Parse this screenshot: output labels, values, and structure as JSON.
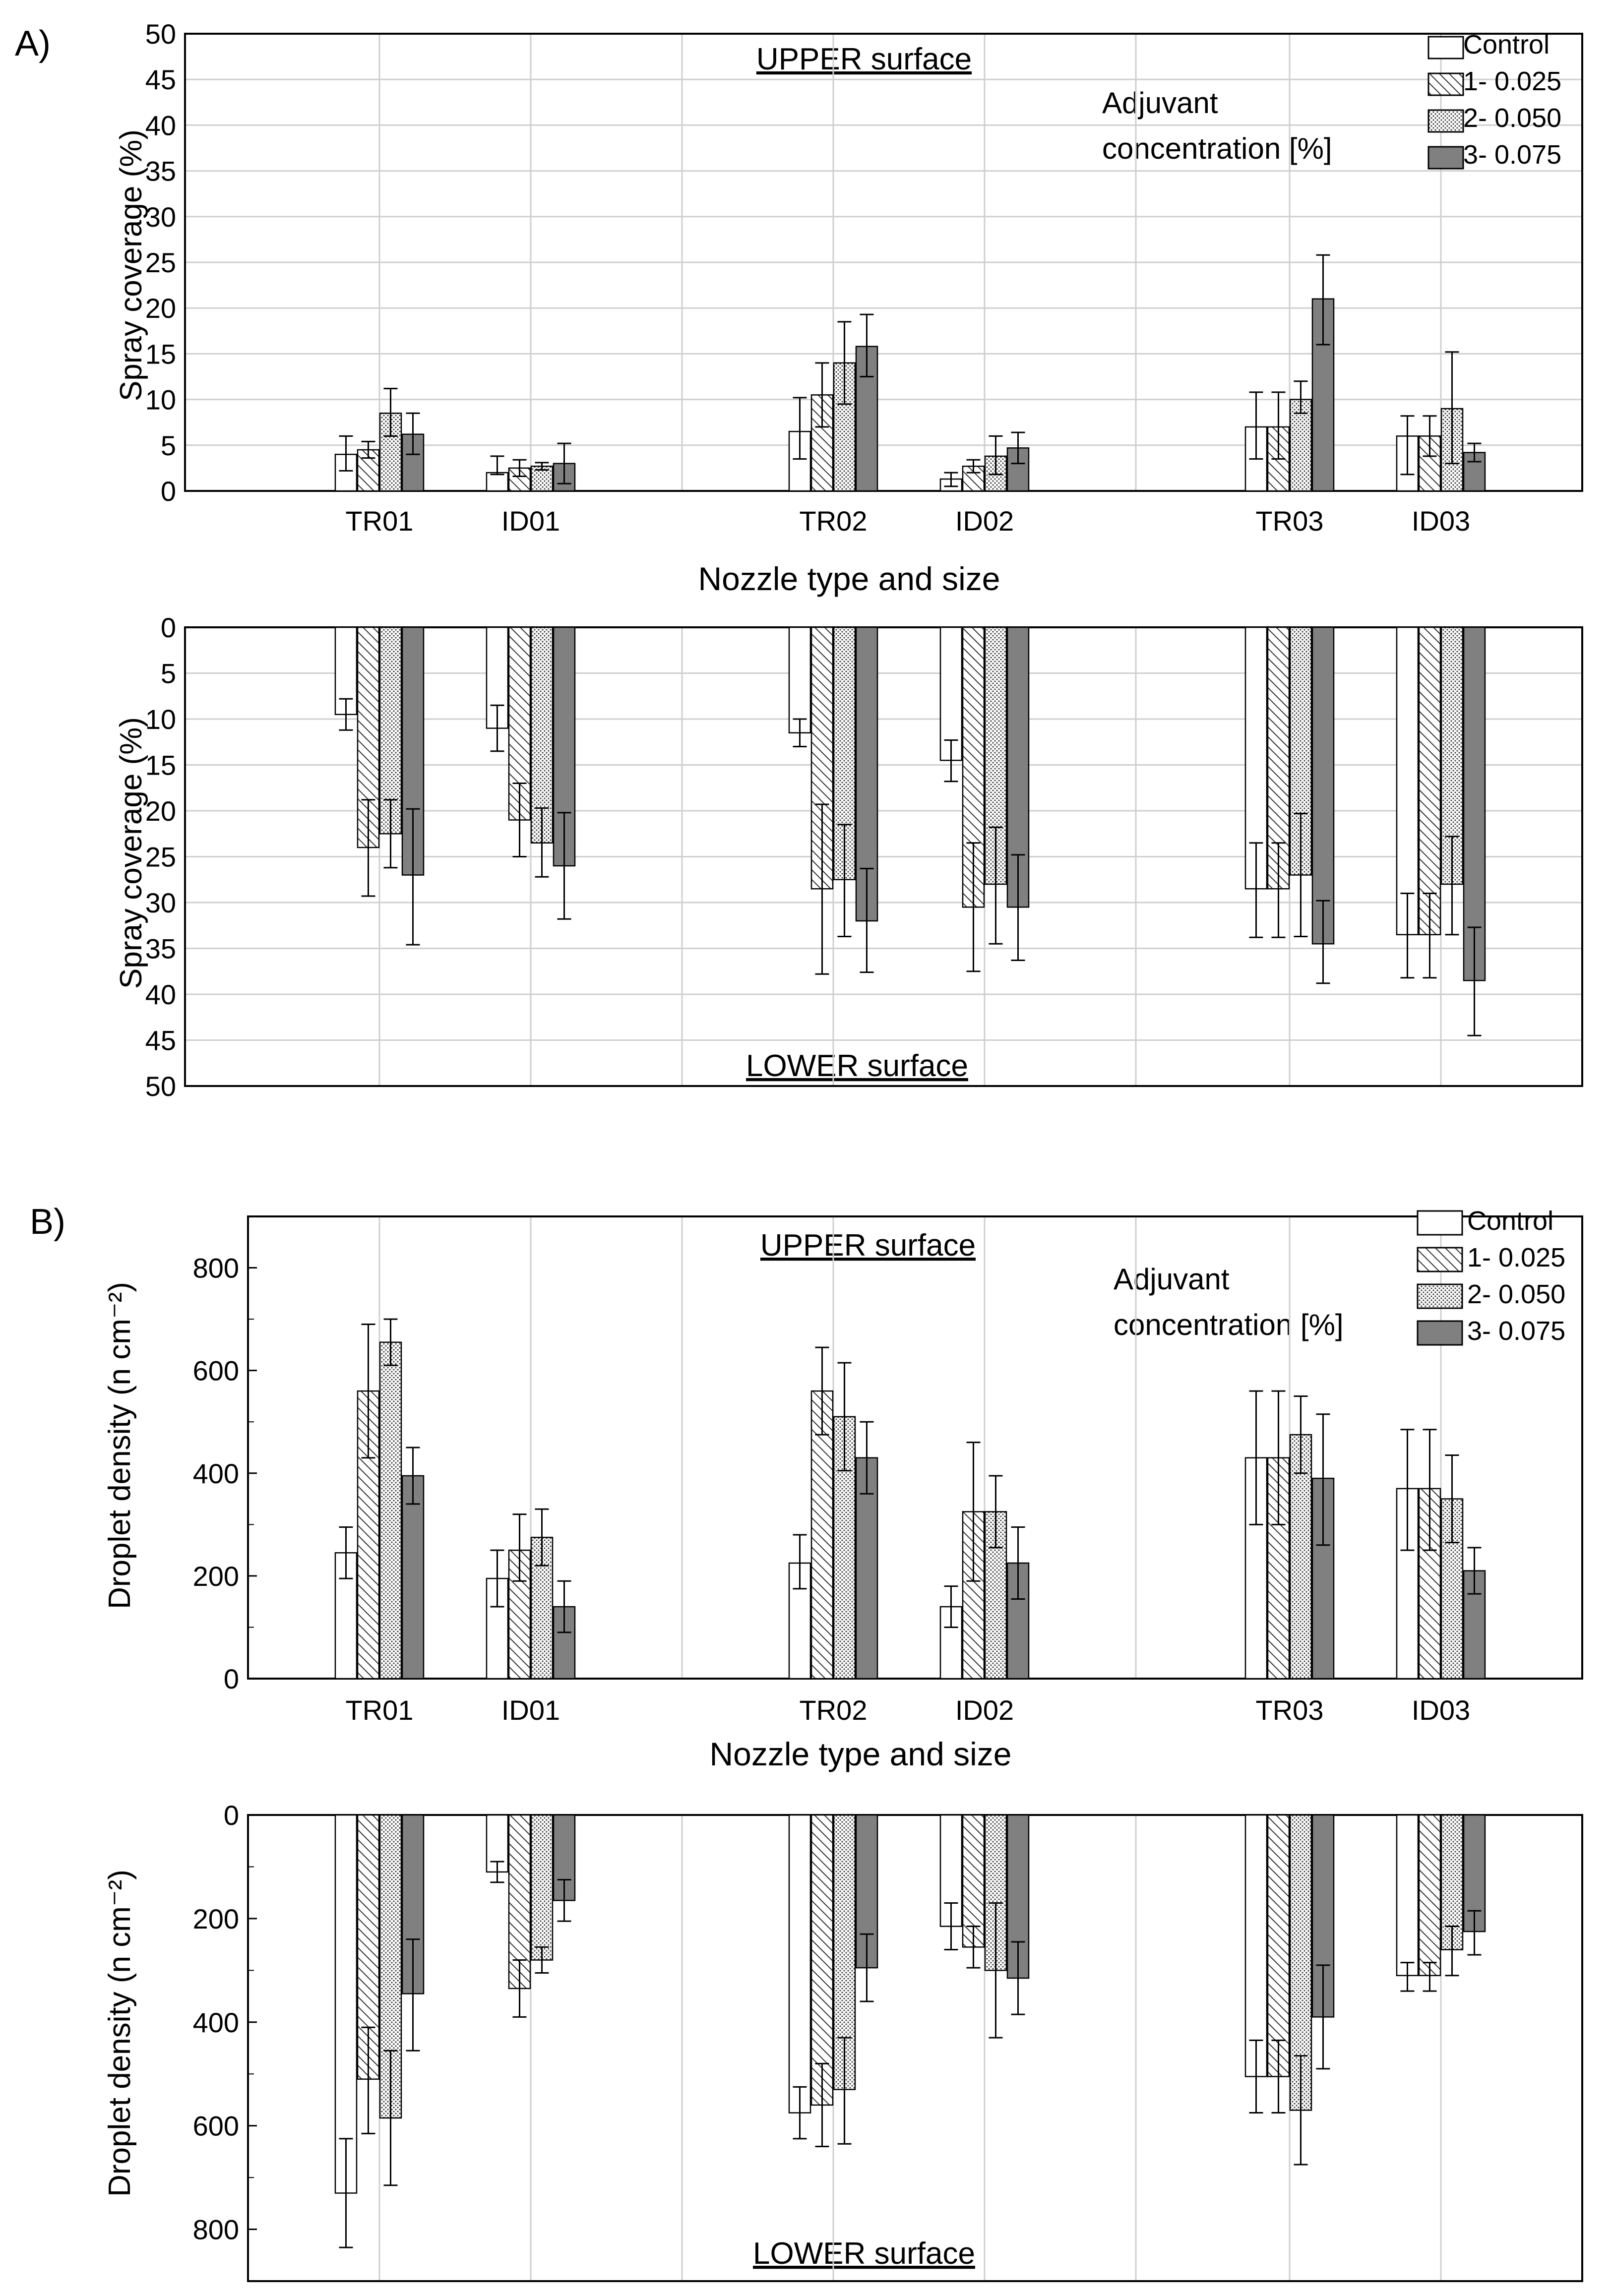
{
  "figure": {
    "panels": [
      {
        "label": "A)"
      },
      {
        "label": "B)"
      }
    ],
    "x_axis_title": "Nozzle type and size",
    "adjuvant_line1": "Adjuvant",
    "adjuvant_line2": "concentration [%]",
    "upper_label": "UPPER surface",
    "lower_label": "LOWER surface"
  },
  "chart_data": [
    {
      "id": "A-upper",
      "type": "bar",
      "title": "UPPER surface",
      "ylabel": "Spray coverage (%)",
      "xlabel": "Nozzle type and size",
      "ylim": [
        0,
        50
      ],
      "yticks": [
        0,
        5,
        10,
        15,
        20,
        25,
        30,
        35,
        40,
        45,
        50
      ],
      "inverted": false,
      "legend_position": "top-right",
      "categories": [
        "TR01",
        "ID01",
        "TR02",
        "ID02",
        "TR03",
        "ID03"
      ],
      "series": [
        {
          "name": "Control",
          "pattern": "white",
          "values": [
            4,
            2,
            6.5,
            1.3,
            7,
            6
          ],
          "err_low": [
            2.2,
            1.8,
            3.5,
            0.5,
            3.5,
            1.8
          ],
          "err_high": [
            6,
            3.8,
            10.2,
            2,
            10.8,
            8.2
          ]
        },
        {
          "name": "1- 0.025",
          "pattern": "hatch",
          "values": [
            4.5,
            2.5,
            10.5,
            2.7,
            7,
            6
          ],
          "err_low": [
            3.6,
            1.6,
            7,
            2,
            3.5,
            3.8
          ],
          "err_high": [
            5.4,
            3.4,
            14,
            3.4,
            10.8,
            8.2
          ]
        },
        {
          "name": "2- 0.050",
          "pattern": "dots",
          "values": [
            8.5,
            2.7,
            14,
            3.8,
            10,
            9
          ],
          "err_low": [
            6,
            2.3,
            9.5,
            1.8,
            8.5,
            3
          ],
          "err_high": [
            11.2,
            3.1,
            18.5,
            6,
            12,
            15.2
          ]
        },
        {
          "name": "3- 0.075",
          "pattern": "gray",
          "values": [
            6.2,
            3,
            15.8,
            4.7,
            21,
            4.2
          ],
          "err_low": [
            4,
            0.8,
            12.5,
            3,
            16,
            3.2
          ],
          "err_high": [
            8.5,
            5.2,
            19.3,
            6.4,
            25.8,
            5.2
          ]
        }
      ]
    },
    {
      "id": "A-lower",
      "type": "bar",
      "title": "LOWER surface",
      "ylabel": "Spray coverage (%)",
      "ylim": [
        0,
        50
      ],
      "yticks": [
        0,
        5,
        10,
        15,
        20,
        25,
        30,
        35,
        40,
        45,
        50
      ],
      "inverted": true,
      "categories": [
        "TR01",
        "ID01",
        "TR02",
        "ID02",
        "TR03",
        "ID03"
      ],
      "series": [
        {
          "name": "Control",
          "pattern": "white",
          "values": [
            9.5,
            11,
            11.5,
            14.5,
            28.5,
            33.5
          ],
          "err_low": [
            7.8,
            8.5,
            10,
            12.3,
            23.5,
            29
          ],
          "err_high": [
            11.2,
            13.5,
            13,
            16.8,
            33.8,
            38.2
          ]
        },
        {
          "name": "1- 0.025",
          "pattern": "hatch",
          "values": [
            24,
            21,
            28.5,
            30.5,
            28.5,
            33.5
          ],
          "err_low": [
            18.8,
            17,
            19.3,
            23.5,
            23.5,
            29
          ],
          "err_high": [
            29.3,
            25,
            37.8,
            37.5,
            33.8,
            38.2
          ]
        },
        {
          "name": "2- 0.050",
          "pattern": "dots",
          "values": [
            22.5,
            23.5,
            27.5,
            28,
            27,
            28
          ],
          "err_low": [
            18.8,
            19.7,
            21.5,
            21.8,
            20.3,
            22.8
          ],
          "err_high": [
            26.2,
            27.2,
            33.7,
            34.5,
            33.7,
            33.5
          ]
        },
        {
          "name": "3- 0.075",
          "pattern": "gray",
          "values": [
            27,
            26,
            32,
            30.5,
            34.5,
            38.5
          ],
          "err_low": [
            19.8,
            20.2,
            26.3,
            24.8,
            29.8,
            32.7
          ],
          "err_high": [
            34.6,
            31.8,
            37.6,
            36.3,
            38.8,
            44.5
          ]
        }
      ]
    },
    {
      "id": "B-upper",
      "type": "bar",
      "title": "UPPER surface",
      "ylabel": "Droplet density (n cm⁻²)",
      "xlabel": "Nozzle type and size",
      "ylim": [
        0,
        900
      ],
      "yticks": [
        0,
        200,
        400,
        600,
        800
      ],
      "inverted": false,
      "legend_position": "top-right",
      "categories": [
        "TR01",
        "ID01",
        "TR02",
        "ID02",
        "TR03",
        "ID03"
      ],
      "series": [
        {
          "name": "Control",
          "pattern": "white",
          "values": [
            245,
            195,
            225,
            140,
            430,
            370
          ],
          "err_low": [
            195,
            140,
            175,
            100,
            300,
            250
          ],
          "err_high": [
            295,
            250,
            280,
            180,
            560,
            485
          ]
        },
        {
          "name": "1- 0.025",
          "pattern": "hatch",
          "values": [
            560,
            250,
            560,
            325,
            430,
            370
          ],
          "err_low": [
            430,
            190,
            475,
            190,
            300,
            250
          ],
          "err_high": [
            690,
            320,
            645,
            460,
            560,
            485
          ]
        },
        {
          "name": "2- 0.050",
          "pattern": "dots",
          "values": [
            655,
            275,
            510,
            325,
            475,
            350
          ],
          "err_low": [
            610,
            220,
            405,
            255,
            400,
            265
          ],
          "err_high": [
            700,
            330,
            615,
            395,
            550,
            435
          ]
        },
        {
          "name": "3- 0.075",
          "pattern": "gray",
          "values": [
            395,
            140,
            430,
            225,
            390,
            210
          ],
          "err_low": [
            340,
            90,
            360,
            155,
            260,
            165
          ],
          "err_high": [
            450,
            190,
            500,
            295,
            515,
            255
          ]
        }
      ]
    },
    {
      "id": "B-lower",
      "type": "bar",
      "title": "LOWER surface",
      "ylabel": "Droplet density (n cm⁻²)",
      "ylim": [
        0,
        900
      ],
      "yticks": [
        0,
        200,
        400,
        600,
        800
      ],
      "inverted": true,
      "categories": [
        "TR01",
        "ID01",
        "TR02",
        "ID02",
        "TR03",
        "ID03"
      ],
      "series": [
        {
          "name": "Control",
          "pattern": "white",
          "values": [
            730,
            110,
            575,
            215,
            505,
            310
          ],
          "err_low": [
            625,
            90,
            525,
            170,
            435,
            285
          ],
          "err_high": [
            835,
            130,
            625,
            260,
            575,
            340
          ]
        },
        {
          "name": "1- 0.025",
          "pattern": "hatch",
          "values": [
            510,
            335,
            560,
            255,
            505,
            310
          ],
          "err_low": [
            410,
            280,
            480,
            215,
            435,
            285
          ],
          "err_high": [
            615,
            390,
            640,
            295,
            575,
            340
          ]
        },
        {
          "name": "2- 0.050",
          "pattern": "dots",
          "values": [
            585,
            280,
            530,
            300,
            570,
            260
          ],
          "err_low": [
            455,
            255,
            430,
            170,
            465,
            215
          ],
          "err_high": [
            715,
            305,
            635,
            430,
            675,
            310
          ]
        },
        {
          "name": "3- 0.075",
          "pattern": "gray",
          "values": [
            345,
            165,
            295,
            315,
            390,
            225
          ],
          "err_low": [
            240,
            125,
            230,
            245,
            290,
            185
          ],
          "err_high": [
            455,
            205,
            360,
            385,
            490,
            270
          ]
        }
      ]
    }
  ]
}
